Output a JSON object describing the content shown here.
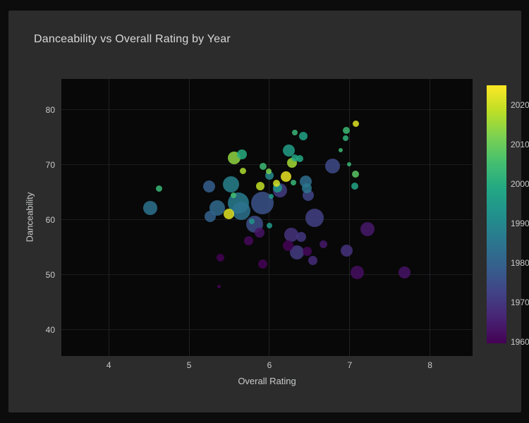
{
  "panel": {
    "title": "Danceability vs Overall Rating by Year"
  },
  "colors": {
    "page_bg": "#0c0c0c",
    "panel_bg": "#2c2c2c",
    "plot_bg": "#080808",
    "gridline": "#212125",
    "title_text": "#d8d9da",
    "tick_text": "#c9cacb"
  },
  "chart_data": {
    "type": "scatter",
    "title": "Danceability vs Overall Rating by Year",
    "xlabel": "Overall Rating",
    "ylabel": "Danceability",
    "xlim": [
      3.41,
      8.53
    ],
    "ylim": [
      35.2,
      85.6
    ],
    "xticks": [
      4,
      5,
      6,
      7,
      8
    ],
    "yticks": [
      40,
      50,
      60,
      70,
      80
    ],
    "grid": true,
    "legend_position": "colorbar-right",
    "colorbar": {
      "colormap": "viridis",
      "min": 1959.6,
      "max": 2025,
      "ticks": [
        2020,
        2010,
        2000,
        1990,
        1980,
        1970,
        1960
      ]
    },
    "point_columns": [
      "overall_rating",
      "danceability",
      "year",
      "radius_px"
    ],
    "points": [
      [
        4.63,
        65.6,
        2003,
        4.5
      ],
      [
        4.52,
        62.1,
        1984,
        10
      ],
      [
        5.56,
        71.3,
        2014,
        9
      ],
      [
        5.66,
        71.9,
        2000,
        7
      ],
      [
        5.67,
        68.9,
        2017,
        4.5
      ],
      [
        5.25,
        66.0,
        1979,
        8.5
      ],
      [
        5.52,
        66.4,
        1988,
        11.5
      ],
      [
        5.55,
        64.4,
        2005,
        4
      ],
      [
        5.61,
        63.0,
        1987,
        15
      ],
      [
        5.65,
        61.6,
        1984,
        13
      ],
      [
        5.5,
        61.1,
        2022,
        7.5
      ],
      [
        5.35,
        62.1,
        1982,
        11
      ],
      [
        5.26,
        60.6,
        1980,
        8
      ],
      [
        6.32,
        75.8,
        2003,
        4
      ],
      [
        6.42,
        75.2,
        1997,
        6
      ],
      [
        7.08,
        77.5,
        2022,
        4.5
      ],
      [
        6.96,
        76.3,
        2004,
        5
      ],
      [
        6.95,
        74.8,
        2002,
        4
      ],
      [
        6.89,
        72.7,
        2004,
        3
      ],
      [
        6.24,
        72.6,
        1996,
        8.5
      ],
      [
        6.32,
        71.3,
        1998,
        5
      ],
      [
        6.38,
        71.1,
        1999,
        5
      ],
      [
        6.28,
        70.3,
        2016,
        7
      ],
      [
        6.79,
        69.8,
        1974,
        10.5
      ],
      [
        6.99,
        70.1,
        2003,
        3
      ],
      [
        5.92,
        69.7,
        2004,
        5
      ],
      [
        5.99,
        68.8,
        2012,
        4
      ],
      [
        6.0,
        68.0,
        1990,
        6
      ],
      [
        6.21,
        67.9,
        2023,
        7.5
      ],
      [
        6.3,
        66.7,
        2003,
        4
      ],
      [
        5.89,
        66.1,
        2019,
        6
      ],
      [
        6.1,
        65.8,
        1994,
        6.5
      ],
      [
        6.09,
        66.6,
        2021,
        5
      ],
      [
        6.13,
        65.3,
        1971,
        10
      ],
      [
        6.45,
        67.0,
        1983,
        8.5
      ],
      [
        6.47,
        65.7,
        1985,
        7
      ],
      [
        6.48,
        64.4,
        1973,
        8
      ],
      [
        7.07,
        68.3,
        2008,
        5
      ],
      [
        7.06,
        66.1,
        1998,
        5
      ],
      [
        5.91,
        63.0,
        1976,
        16
      ],
      [
        6.02,
        64.2,
        1995,
        3.5
      ],
      [
        5.78,
        59.7,
        1993,
        4
      ],
      [
        6.0,
        58.9,
        1995,
        4
      ],
      [
        5.82,
        59.2,
        1975,
        12
      ],
      [
        5.88,
        57.6,
        1963,
        7
      ],
      [
        5.74,
        56.2,
        1961,
        6.5
      ],
      [
        5.39,
        53.1,
        1959,
        5.5
      ],
      [
        5.92,
        52.0,
        1960,
        6.5
      ],
      [
        5.37,
        47.8,
        1960,
        2.5
      ],
      [
        6.56,
        60.3,
        1972,
        13
      ],
      [
        6.27,
        57.2,
        1969,
        10
      ],
      [
        6.4,
        56.9,
        1970,
        7
      ],
      [
        6.23,
        55.3,
        1960,
        7.5
      ],
      [
        6.34,
        54.0,
        1971,
        10
      ],
      [
        6.47,
        54.2,
        1961,
        6.5
      ],
      [
        6.54,
        52.6,
        1968,
        6.5
      ],
      [
        6.67,
        55.5,
        1964,
        5.5
      ],
      [
        6.96,
        54.4,
        1969,
        8.5
      ],
      [
        7.22,
        58.3,
        1964,
        10
      ],
      [
        7.09,
        50.4,
        1962,
        9.5
      ],
      [
        7.68,
        50.4,
        1963,
        8.5
      ]
    ]
  }
}
